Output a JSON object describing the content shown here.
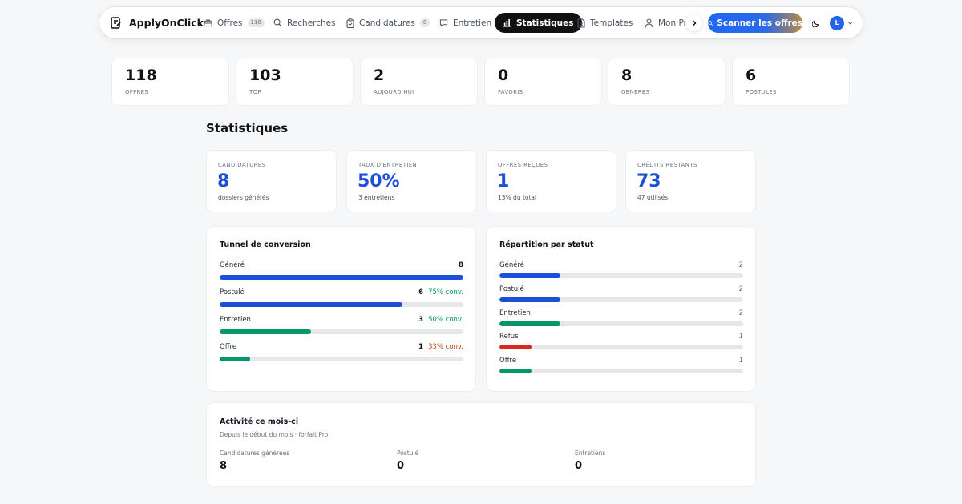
{
  "nav": {
    "brand": "ApplyOnClick",
    "items": [
      {
        "label": "Offres",
        "badge": "118",
        "icon": "briefcase-icon"
      },
      {
        "label": "Recherches",
        "icon": "search-icon"
      },
      {
        "label": "Candidatures",
        "badge": "8",
        "icon": "clipboard-icon"
      },
      {
        "label": "Entretien",
        "icon": "chat-icon"
      },
      {
        "label": "Statistiques",
        "icon": "bar-chart-icon",
        "active": true
      },
      {
        "label": "Templates",
        "icon": "document-icon"
      },
      {
        "label": "Mon Profil",
        "icon": "user-icon"
      }
    ],
    "scan_button": "Scanner les offres",
    "avatar_initial": "L"
  },
  "top_stats": [
    {
      "value": "118",
      "label": "OFFRES"
    },
    {
      "value": "103",
      "label": "TOP"
    },
    {
      "value": "2",
      "label": "AUJOURD'HUI"
    },
    {
      "value": "0",
      "label": "FAVORIS"
    },
    {
      "value": "8",
      "label": "GENERES"
    },
    {
      "value": "6",
      "label": "POSTULES"
    }
  ],
  "page_title": "Statistiques",
  "kpis": [
    {
      "label": "CANDIDATURES",
      "value": "8",
      "sub": "dossiers générés"
    },
    {
      "label": "TAUX D'ENTRETIEN",
      "value": "50%",
      "sub": "3 entretiens"
    },
    {
      "label": "OFFRES REÇUES",
      "value": "1",
      "sub": "13% du total"
    },
    {
      "label": "CRÉDITS RESTANTS",
      "value": "73",
      "sub": "47 utilisés"
    }
  ],
  "funnel": {
    "title": "Tunnel de conversion",
    "rows": [
      {
        "name": "Généré",
        "count": "8",
        "conv": "",
        "fraction": 1.0,
        "color": "#1d4ed8",
        "conv_color": ""
      },
      {
        "name": "Postulé",
        "count": "6",
        "conv": "75% conv.",
        "fraction": 0.75,
        "color": "#1d4ed8",
        "conv_color": "#059669"
      },
      {
        "name": "Entretien",
        "count": "3",
        "conv": "50% conv.",
        "fraction": 0.375,
        "color": "#059669",
        "conv_color": "#059669"
      },
      {
        "name": "Offre",
        "count": "1",
        "conv": "33% conv.",
        "fraction": 0.125,
        "color": "#059669",
        "conv_color": "#c2410c"
      }
    ]
  },
  "status": {
    "title": "Répartition par statut",
    "rows": [
      {
        "name": "Généré",
        "count": "2",
        "fraction": 0.25,
        "color": "#1d4ed8"
      },
      {
        "name": "Postulé",
        "count": "2",
        "fraction": 0.25,
        "color": "#1d4ed8"
      },
      {
        "name": "Entretien",
        "count": "2",
        "fraction": 0.25,
        "color": "#059669"
      },
      {
        "name": "Refus",
        "count": "1",
        "fraction": 0.13,
        "color": "#dc2626"
      },
      {
        "name": "Offre",
        "count": "1",
        "fraction": 0.13,
        "color": "#059669"
      }
    ]
  },
  "activity": {
    "title": "Activité ce mois-ci",
    "subtitle": "Depuis le début du mois · forfait Pro",
    "cols": [
      {
        "label": "Candidatures générées",
        "value": "8"
      },
      {
        "label": "Postulé",
        "value": "0"
      },
      {
        "label": "Entretiens",
        "value": "0"
      }
    ]
  }
}
